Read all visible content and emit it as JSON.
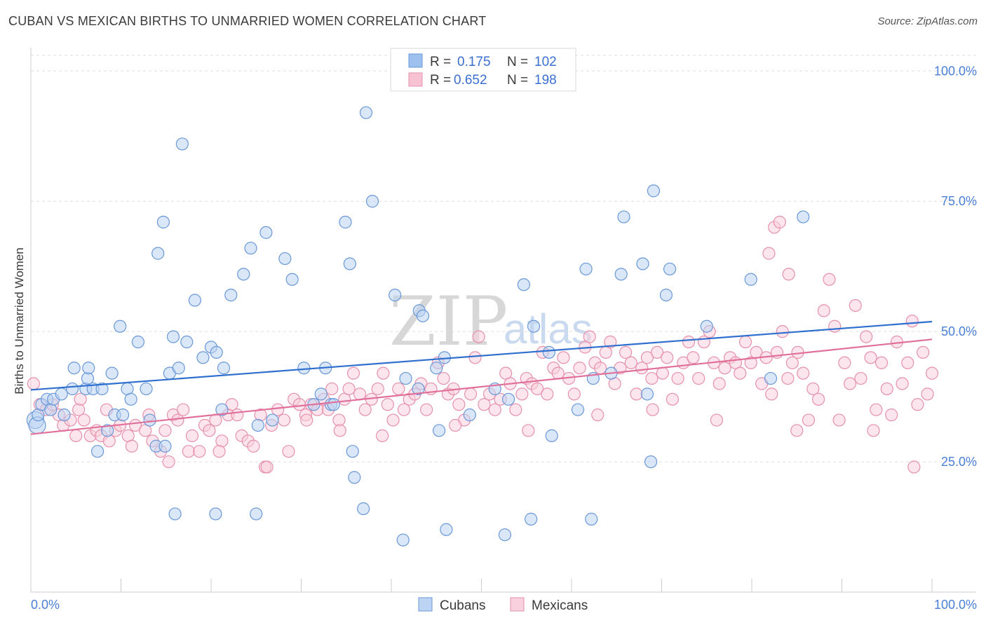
{
  "title": "CUBAN VS MEXICAN BIRTHS TO UNMARRIED WOMEN CORRELATION CHART",
  "source": "Source: ZipAtlas.com",
  "watermark": {
    "zip": "ZIP",
    "atlas": "atlas"
  },
  "legend": {
    "rows": [
      {
        "r_label": "R =",
        "r_value": "0.175",
        "n_label": "N =",
        "n_value": "102",
        "color": "#9ec0ef",
        "stroke": "#6a98d8"
      },
      {
        "r_label": "R =",
        "r_value": "0.652",
        "n_label": "N =",
        "n_value": "198",
        "color": "#f7c3d3",
        "stroke": "#e691ac"
      }
    ]
  },
  "bottom_legend": [
    {
      "label": "Cubans",
      "color": "#bcd3f3",
      "stroke": "#6a98d8"
    },
    {
      "label": "Mexicans",
      "color": "#f9d0dd",
      "stroke": "#e691ac"
    }
  ],
  "chart_data": {
    "type": "scatter",
    "title": "CUBAN VS MEXICAN BIRTHS TO UNMARRIED WOMEN CORRELATION CHART",
    "xlabel": "",
    "ylabel": "Births to Unmarried Women",
    "xlim": [
      0,
      100
    ],
    "ylim": [
      0,
      103
    ],
    "x_tick_labels": [
      "0.0%",
      "100.0%"
    ],
    "y_tick_values": [
      25,
      50,
      75,
      100
    ],
    "y_tick_labels": [
      "25.0%",
      "50.0%",
      "75.0%",
      "100.0%"
    ],
    "grid": true,
    "series": [
      {
        "name": "Cubans",
        "color": "#6a98d8",
        "fill": "#bcd3f3",
        "trend": {
          "x": [
            0,
            100
          ],
          "y": [
            38.8,
            51.9
          ],
          "color": "#2f6fcf"
        },
        "points": [
          [
            0.5,
            33
          ],
          [
            0.7,
            32
          ],
          [
            0.8,
            34
          ],
          [
            1.2,
            36
          ],
          [
            1.8,
            37
          ],
          [
            2.2,
            35
          ],
          [
            2.5,
            37
          ],
          [
            3.4,
            38
          ],
          [
            3.7,
            34
          ],
          [
            4.6,
            39
          ],
          [
            4.8,
            43
          ],
          [
            6.1,
            39
          ],
          [
            6.3,
            41
          ],
          [
            6.4,
            43
          ],
          [
            6.9,
            39
          ],
          [
            7.4,
            27
          ],
          [
            7.9,
            39
          ],
          [
            8.5,
            31
          ],
          [
            9.0,
            42
          ],
          [
            9.3,
            34
          ],
          [
            9.9,
            51
          ],
          [
            10.2,
            34
          ],
          [
            10.7,
            39
          ],
          [
            11.1,
            37
          ],
          [
            11.9,
            48
          ],
          [
            12.8,
            39
          ],
          [
            13.2,
            33
          ],
          [
            13.9,
            28
          ],
          [
            14.1,
            65
          ],
          [
            14.7,
            71
          ],
          [
            14.9,
            28
          ],
          [
            15.4,
            42
          ],
          [
            15.8,
            49
          ],
          [
            16.4,
            43
          ],
          [
            16.8,
            86
          ],
          [
            17.3,
            48
          ],
          [
            18.2,
            56
          ],
          [
            19.1,
            45
          ],
          [
            20.0,
            47
          ],
          [
            20.6,
            46
          ],
          [
            21.2,
            35
          ],
          [
            21.4,
            43
          ],
          [
            22.2,
            57
          ],
          [
            23.6,
            61
          ],
          [
            24.4,
            66
          ],
          [
            25.2,
            32
          ],
          [
            26.1,
            69
          ],
          [
            26.8,
            33
          ],
          [
            28.2,
            64
          ],
          [
            29.0,
            60
          ],
          [
            30.3,
            43
          ],
          [
            31.4,
            36
          ],
          [
            32.2,
            38
          ],
          [
            32.7,
            43
          ],
          [
            33.3,
            36
          ],
          [
            33.6,
            36
          ],
          [
            34.9,
            71
          ],
          [
            35.4,
            63
          ],
          [
            35.7,
            27
          ],
          [
            35.9,
            22
          ],
          [
            36.9,
            16
          ],
          [
            37.2,
            92
          ],
          [
            37.9,
            75
          ],
          [
            40.4,
            57
          ],
          [
            41.3,
            10
          ],
          [
            41.6,
            41
          ],
          [
            43.0,
            39
          ],
          [
            43.1,
            54
          ],
          [
            43.5,
            53
          ],
          [
            45.0,
            43
          ],
          [
            45.3,
            31
          ],
          [
            45.9,
            45
          ],
          [
            46.1,
            12
          ],
          [
            48.7,
            34
          ],
          [
            51.5,
            39
          ],
          [
            52.6,
            11
          ],
          [
            53.0,
            37
          ],
          [
            54.7,
            59
          ],
          [
            55.5,
            14
          ],
          [
            55.8,
            51
          ],
          [
            57.5,
            46
          ],
          [
            57.8,
            30
          ],
          [
            60.7,
            35
          ],
          [
            61.6,
            62
          ],
          [
            62.2,
            14
          ],
          [
            62.4,
            41
          ],
          [
            64.4,
            42
          ],
          [
            65.5,
            61
          ],
          [
            65.8,
            72
          ],
          [
            67.9,
            63
          ],
          [
            68.4,
            38
          ],
          [
            68.8,
            25
          ],
          [
            69.1,
            77
          ],
          [
            70.5,
            57
          ],
          [
            70.9,
            62
          ],
          [
            75.0,
            51
          ],
          [
            79.9,
            60
          ],
          [
            82.1,
            41
          ],
          [
            85.7,
            72
          ],
          [
            16.0,
            15
          ],
          [
            20.5,
            15
          ],
          [
            25.0,
            15
          ]
        ]
      },
      {
        "name": "Mexicans",
        "color": "#e691ac",
        "fill": "#f9d0dd",
        "trend": {
          "x": [
            0,
            100
          ],
          "y": [
            30.3,
            48.5
          ],
          "color": "#e0709a"
        },
        "points": [
          [
            0.3,
            40
          ],
          [
            1.0,
            36
          ],
          [
            1.7,
            35
          ],
          [
            2.4,
            36
          ],
          [
            3.1,
            34
          ],
          [
            3.6,
            32
          ],
          [
            4.4,
            33
          ],
          [
            5.3,
            35
          ],
          [
            5.5,
            37
          ],
          [
            5.9,
            33
          ],
          [
            6.6,
            30
          ],
          [
            7.3,
            31
          ],
          [
            7.8,
            30
          ],
          [
            8.4,
            35
          ],
          [
            8.7,
            29
          ],
          [
            9.4,
            31
          ],
          [
            9.9,
            32
          ],
          [
            10.8,
            30
          ],
          [
            11.2,
            28
          ],
          [
            11.6,
            32
          ],
          [
            12.7,
            31
          ],
          [
            13.1,
            34
          ],
          [
            13.5,
            29
          ],
          [
            14.4,
            27
          ],
          [
            14.9,
            31
          ],
          [
            15.3,
            25
          ],
          [
            15.8,
            34
          ],
          [
            16.3,
            33
          ],
          [
            16.9,
            35
          ],
          [
            17.5,
            27
          ],
          [
            17.9,
            30
          ],
          [
            18.7,
            27
          ],
          [
            19.3,
            32
          ],
          [
            19.8,
            31
          ],
          [
            20.5,
            33
          ],
          [
            21.2,
            29
          ],
          [
            21.9,
            34
          ],
          [
            22.3,
            36
          ],
          [
            22.9,
            34
          ],
          [
            23.4,
            30
          ],
          [
            24.1,
            29
          ],
          [
            24.7,
            28
          ],
          [
            25.5,
            34
          ],
          [
            26.0,
            24
          ],
          [
            26.7,
            32
          ],
          [
            27.4,
            35
          ],
          [
            28.1,
            33
          ],
          [
            28.6,
            27
          ],
          [
            29.2,
            37
          ],
          [
            29.8,
            36
          ],
          [
            30.5,
            34
          ],
          [
            31.1,
            36
          ],
          [
            31.8,
            35
          ],
          [
            32.5,
            37
          ],
          [
            33.0,
            35
          ],
          [
            33.4,
            39
          ],
          [
            34.2,
            33
          ],
          [
            34.8,
            37
          ],
          [
            35.3,
            39
          ],
          [
            35.8,
            42
          ],
          [
            36.5,
            38
          ],
          [
            37.1,
            35
          ],
          [
            37.8,
            37
          ],
          [
            38.5,
            39
          ],
          [
            39.1,
            42
          ],
          [
            39.6,
            36
          ],
          [
            40.2,
            33
          ],
          [
            40.8,
            39
          ],
          [
            41.4,
            35
          ],
          [
            42.0,
            37
          ],
          [
            42.6,
            38
          ],
          [
            43.3,
            40
          ],
          [
            43.9,
            35
          ],
          [
            44.4,
            39
          ],
          [
            45.2,
            44
          ],
          [
            45.8,
            41
          ],
          [
            46.3,
            38
          ],
          [
            46.9,
            39
          ],
          [
            47.5,
            36
          ],
          [
            48.1,
            33
          ],
          [
            48.8,
            38
          ],
          [
            49.3,
            45
          ],
          [
            49.7,
            49
          ],
          [
            50.3,
            36
          ],
          [
            50.9,
            38
          ],
          [
            51.5,
            35
          ],
          [
            52.1,
            37
          ],
          [
            52.7,
            42
          ],
          [
            53.2,
            40
          ],
          [
            53.8,
            35
          ],
          [
            54.5,
            38
          ],
          [
            55.0,
            41
          ],
          [
            55.6,
            40
          ],
          [
            56.2,
            39
          ],
          [
            56.8,
            46
          ],
          [
            57.3,
            38
          ],
          [
            58.0,
            43
          ],
          [
            58.5,
            42
          ],
          [
            59.1,
            45
          ],
          [
            59.7,
            41
          ],
          [
            60.3,
            38
          ],
          [
            60.9,
            43
          ],
          [
            61.5,
            47
          ],
          [
            62.0,
            49
          ],
          [
            62.6,
            44
          ],
          [
            63.2,
            43
          ],
          [
            63.8,
            46
          ],
          [
            64.3,
            48
          ],
          [
            64.8,
            40
          ],
          [
            65.4,
            43
          ],
          [
            66.0,
            46
          ],
          [
            66.6,
            44
          ],
          [
            67.2,
            38
          ],
          [
            67.8,
            43
          ],
          [
            68.4,
            45
          ],
          [
            68.9,
            41
          ],
          [
            69.5,
            46
          ],
          [
            70.1,
            42
          ],
          [
            70.6,
            45
          ],
          [
            71.2,
            37
          ],
          [
            71.8,
            41
          ],
          [
            72.4,
            44
          ],
          [
            73.0,
            48
          ],
          [
            73.5,
            45
          ],
          [
            74.1,
            41
          ],
          [
            74.7,
            48
          ],
          [
            75.3,
            50
          ],
          [
            75.8,
            44
          ],
          [
            76.4,
            40
          ],
          [
            77.0,
            43
          ],
          [
            77.6,
            45
          ],
          [
            78.2,
            44
          ],
          [
            78.7,
            42
          ],
          [
            79.3,
            48
          ],
          [
            79.9,
            44
          ],
          [
            80.5,
            46
          ],
          [
            81.1,
            40
          ],
          [
            81.6,
            45
          ],
          [
            82.2,
            38
          ],
          [
            82.8,
            46
          ],
          [
            83.4,
            50
          ],
          [
            84.0,
            41
          ],
          [
            84.5,
            44
          ],
          [
            85.1,
            46
          ],
          [
            85.7,
            42
          ],
          [
            86.3,
            33
          ],
          [
            86.8,
            39
          ],
          [
            87.4,
            37
          ],
          [
            88.0,
            54
          ],
          [
            88.6,
            60
          ],
          [
            89.2,
            51
          ],
          [
            89.7,
            33
          ],
          [
            90.3,
            44
          ],
          [
            90.9,
            40
          ],
          [
            91.5,
            55
          ],
          [
            92.1,
            41
          ],
          [
            92.7,
            49
          ],
          [
            93.2,
            45
          ],
          [
            93.8,
            35
          ],
          [
            94.4,
            44
          ],
          [
            95.0,
            39
          ],
          [
            95.5,
            34
          ],
          [
            96.1,
            48
          ],
          [
            96.7,
            40
          ],
          [
            97.3,
            44
          ],
          [
            97.8,
            52
          ],
          [
            98.4,
            36
          ],
          [
            99.0,
            46
          ],
          [
            99.5,
            38
          ],
          [
            100.0,
            42
          ],
          [
            81.9,
            65
          ],
          [
            82.5,
            70
          ],
          [
            83.1,
            71
          ],
          [
            84.1,
            61
          ],
          [
            20.9,
            27
          ],
          [
            26.2,
            24
          ],
          [
            30.6,
            33
          ],
          [
            34.3,
            31
          ],
          [
            39.0,
            30
          ],
          [
            47.1,
            32
          ],
          [
            55.2,
            31
          ],
          [
            62.9,
            34
          ],
          [
            69.0,
            35
          ],
          [
            76.1,
            33
          ],
          [
            85.0,
            31
          ],
          [
            93.5,
            31
          ],
          [
            98.0,
            24
          ],
          [
            5.0,
            30
          ]
        ]
      }
    ]
  }
}
